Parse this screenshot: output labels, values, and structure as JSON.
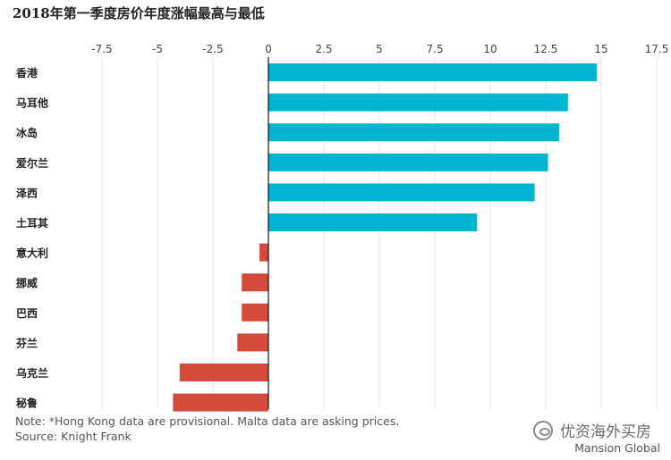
{
  "chart_data": {
    "type": "bar",
    "orientation": "horizontal",
    "title": "2018年第一季度房价年度涨幅最高与最低",
    "categories": [
      "香港",
      "马耳他",
      "冰岛",
      "爱尔兰",
      "泽西",
      "土耳其",
      "意大利",
      "挪威",
      "巴西",
      "芬兰",
      "乌克兰",
      "秘鲁"
    ],
    "values": [
      14.8,
      13.5,
      13.1,
      12.6,
      12.0,
      9.4,
      -0.4,
      -1.2,
      -1.2,
      -1.4,
      -4.0,
      -4.3
    ],
    "xlim": [
      -8.5,
      18.5
    ],
    "ticks": [
      -7.5,
      -5,
      -2.5,
      0,
      2.5,
      5,
      7.5,
      10,
      12.5,
      15,
      17.5
    ],
    "tick_labels": [
      "-7.5",
      "-5",
      "-2.5",
      "0",
      "2.5",
      "5",
      "7.5",
      "10",
      "12.5",
      "15",
      "17.5"
    ],
    "xaxis_position": "top",
    "grid": true,
    "xlabel": "",
    "ylabel": "",
    "colors": {
      "positive": "#00b4d2",
      "negative": "#d64a3b",
      "grid": "#e3e3e3",
      "zero_line": "#111111"
    },
    "note": "Note: *Hong Kong data are provisional. Malta data are asking prices.",
    "source": "Source: Knight Frank"
  },
  "watermark": {
    "icon": "wechat-icon",
    "text": "优资海外买房"
  },
  "brand": "Mansion Global"
}
